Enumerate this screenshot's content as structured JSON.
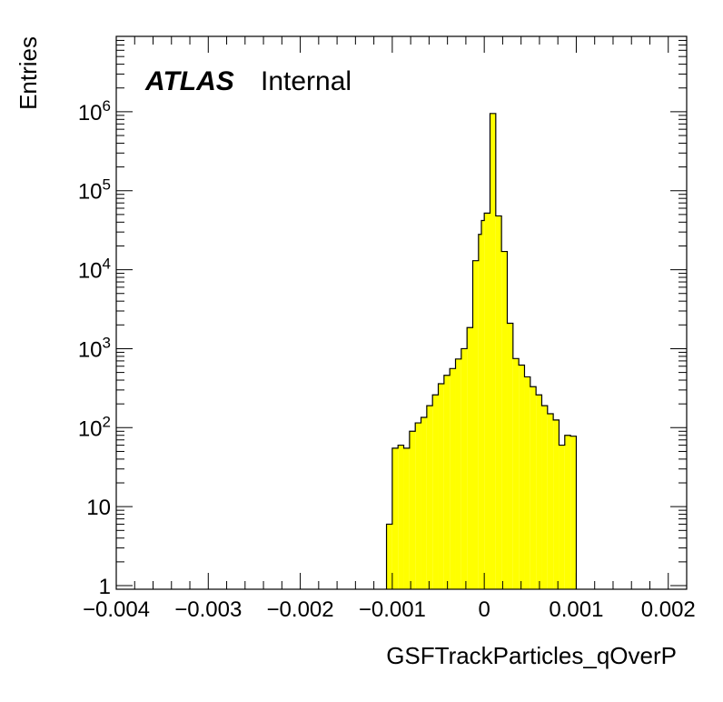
{
  "chart_data": {
    "type": "histogram",
    "title": "",
    "xlabel": "GSFTrackParticles_qOverP",
    "ylabel": "Entries",
    "label": {
      "experiment": "ATLAS",
      "status": "Internal"
    },
    "xlim": [
      -0.004,
      0.0022
    ],
    "ylim": [
      0.9,
      9000000
    ],
    "yscale": "log",
    "grid": false,
    "fill_color": "#ffff00",
    "line_color": "#000000",
    "x_ticks": [
      {
        "value": -0.004,
        "label": "−0.004"
      },
      {
        "value": -0.003,
        "label": "−0.003"
      },
      {
        "value": -0.002,
        "label": "−0.002"
      },
      {
        "value": -0.001,
        "label": "−0.001"
      },
      {
        "value": 0,
        "label": "0"
      },
      {
        "value": 0.001,
        "label": "0.001"
      },
      {
        "value": 0.002,
        "label": "0.002"
      }
    ],
    "y_ticks": [
      {
        "value": 1,
        "base": "1",
        "exp": ""
      },
      {
        "value": 10,
        "base": "10",
        "exp": ""
      },
      {
        "value": 100,
        "base": "10",
        "exp": "2"
      },
      {
        "value": 1000,
        "base": "10",
        "exp": "3"
      },
      {
        "value": 10000,
        "base": "10",
        "exp": "4"
      },
      {
        "value": 100000,
        "base": "10",
        "exp": "5"
      },
      {
        "value": 1000000,
        "base": "10",
        "exp": "6"
      }
    ],
    "bin_width": 6.25e-05,
    "bins": [
      {
        "x_low": -0.0010625,
        "value": 6
      },
      {
        "x_low": -0.001,
        "value": 55
      },
      {
        "x_low": -0.0009375,
        "value": 60
      },
      {
        "x_low": -0.000875,
        "value": 55
      },
      {
        "x_low": -0.0008125,
        "value": 90
      },
      {
        "x_low": -0.00075,
        "value": 115
      },
      {
        "x_low": -0.0006875,
        "value": 135
      },
      {
        "x_low": -0.000625,
        "value": 190
      },
      {
        "x_low": -0.0005625,
        "value": 260
      },
      {
        "x_low": -0.0005,
        "value": 360
      },
      {
        "x_low": -0.0004375,
        "value": 460
      },
      {
        "x_low": -0.000375,
        "value": 560
      },
      {
        "x_low": -0.0003125,
        "value": 740
      },
      {
        "x_low": -0.00025,
        "value": 1000
      },
      {
        "x_low": -0.0001875,
        "value": 1850
      },
      {
        "x_low": -0.000125,
        "value": 13000
      },
      {
        "x_low": -6.25e-05,
        "value": 28000
      },
      {
        "x_low": -3.125e-05,
        "value": 42000
      },
      {
        "x_low": 0,
        "value": 52000
      },
      {
        "x_low": 6.25e-05,
        "value": 950000
      },
      {
        "x_low": 0.000125,
        "value": 48000
      },
      {
        "x_low": 0.0001875,
        "value": 17000
      },
      {
        "x_low": 0.00025,
        "value": 2100
      },
      {
        "x_low": 0.0003125,
        "value": 750
      },
      {
        "x_low": 0.000375,
        "value": 620
      },
      {
        "x_low": 0.0004375,
        "value": 440
      },
      {
        "x_low": 0.0005,
        "value": 330
      },
      {
        "x_low": 0.0005625,
        "value": 260
      },
      {
        "x_low": 0.000625,
        "value": 190
      },
      {
        "x_low": 0.0006875,
        "value": 150
      },
      {
        "x_low": 0.00075,
        "value": 125
      },
      {
        "x_low": 0.0008125,
        "value": 60
      },
      {
        "x_low": 0.000875,
        "value": 80
      },
      {
        "x_low": 0.0009375,
        "value": 78
      }
    ]
  }
}
